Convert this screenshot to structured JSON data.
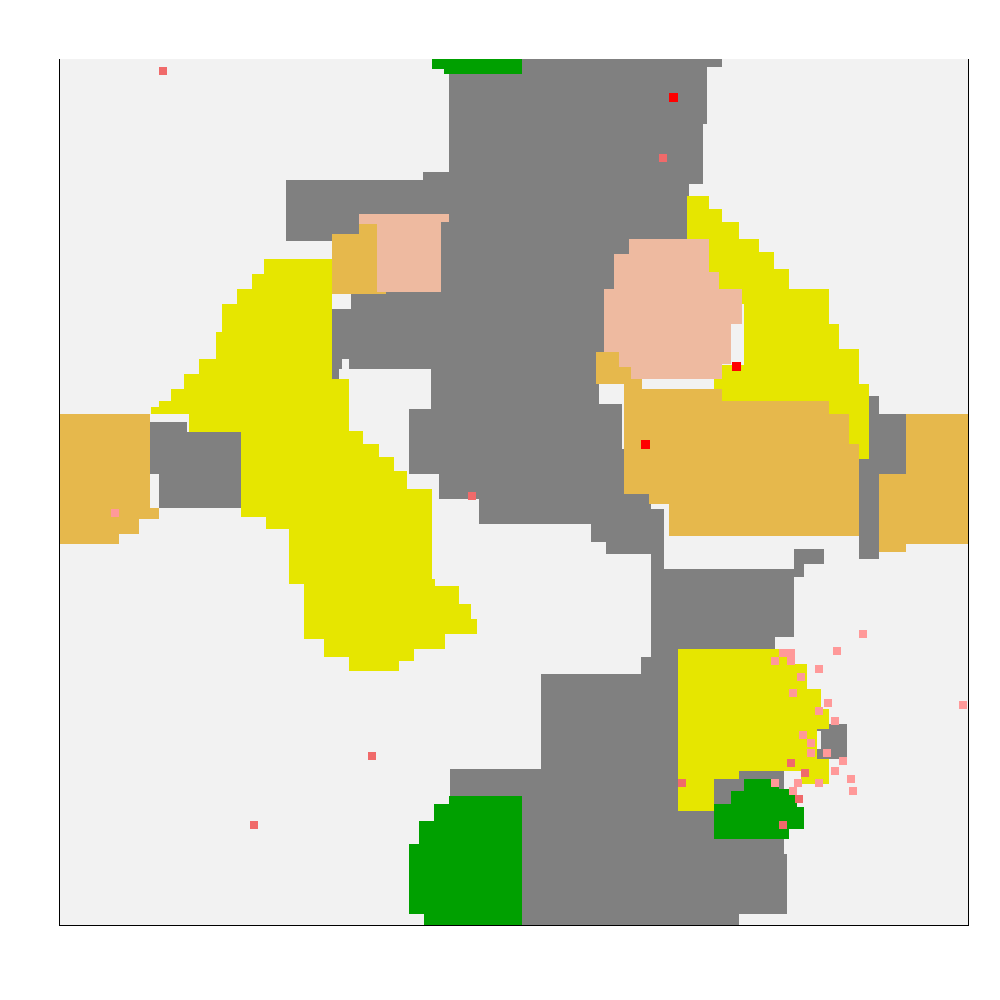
{
  "map": {
    "grid": "cellular-terrain",
    "palette": {
      "background": "#f2f2f2",
      "rock": "#808080",
      "grass": "#00a000",
      "sand": "#e6b84c",
      "field": "#e6e600",
      "peach": "#eebaa0",
      "unit_red": "#ff0000",
      "unit_salmon": "#f06a6a",
      "unit_pink": "#ff9999",
      "frame": "#000000"
    },
    "regions": [
      {
        "name": "rock-center",
        "terrain": "rock"
      },
      {
        "name": "rock-right",
        "terrain": "rock"
      },
      {
        "name": "rock-left",
        "terrain": "rock"
      },
      {
        "name": "grass-top",
        "terrain": "grass"
      },
      {
        "name": "grass-bottom",
        "terrain": "grass"
      },
      {
        "name": "grass-small",
        "terrain": "grass"
      },
      {
        "name": "sand-left",
        "terrain": "sand"
      },
      {
        "name": "sand-top-left",
        "terrain": "sand"
      },
      {
        "name": "sand-center-right",
        "terrain": "sand"
      },
      {
        "name": "sand-right",
        "terrain": "sand"
      },
      {
        "name": "field-left",
        "terrain": "field"
      },
      {
        "name": "field-right",
        "terrain": "field"
      },
      {
        "name": "field-bottom-right",
        "terrain": "field"
      },
      {
        "name": "peach-top-left",
        "terrain": "peach"
      },
      {
        "name": "peach-right",
        "terrain": "peach"
      }
    ],
    "unit_groups": [
      "unit_red",
      "unit_salmon",
      "unit_pink"
    ]
  }
}
